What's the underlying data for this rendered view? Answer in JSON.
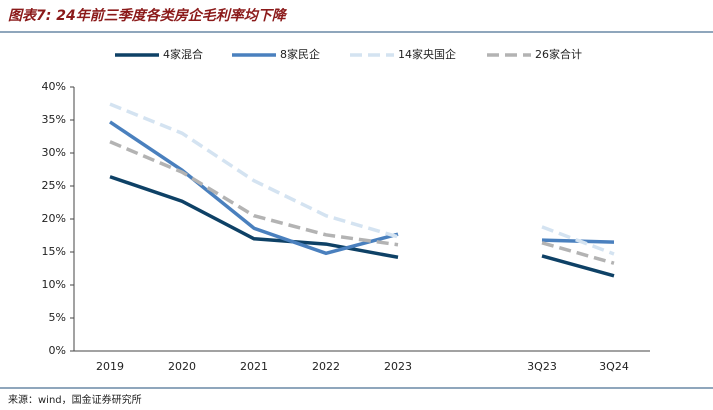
{
  "chart_data": {
    "type": "line",
    "title": "图表7: 24年前三季度各类房企毛利率均下降",
    "source": "来源：wind，国金证券研究所",
    "categories": [
      "2019",
      "2020",
      "2021",
      "2022",
      "2023",
      null,
      "3Q23",
      "3Q24"
    ],
    "series": [
      {
        "name": "4家混合",
        "color": "#0e4166",
        "dashed": false,
        "values": [
          26.4,
          22.7,
          17.0,
          16.2,
          14.2,
          null,
          14.4,
          11.4
        ]
      },
      {
        "name": "8家民企",
        "color": "#4a80be",
        "dashed": false,
        "values": [
          34.7,
          27.4,
          18.6,
          14.8,
          17.7,
          null,
          16.8,
          16.5
        ]
      },
      {
        "name": "14家央国企",
        "color": "#d4e3f1",
        "dashed": true,
        "values": [
          37.4,
          33.0,
          25.8,
          20.5,
          17.3,
          null,
          18.8,
          14.7
        ]
      },
      {
        "name": "26家合计",
        "color": "#b3b3b3",
        "dashed": true,
        "values": [
          31.7,
          27.1,
          20.5,
          17.6,
          16.1,
          null,
          16.4,
          13.3
        ]
      }
    ],
    "ylim": [
      0,
      40
    ],
    "yticks": [
      {
        "value": 0,
        "label": "0%"
      },
      {
        "value": 5,
        "label": "5%"
      },
      {
        "value": 10,
        "label": "10%"
      },
      {
        "value": 15,
        "label": "15%"
      },
      {
        "value": 20,
        "label": "20%"
      },
      {
        "value": 25,
        "label": "25%"
      },
      {
        "value": 30,
        "label": "30%"
      },
      {
        "value": 35,
        "label": "35%"
      },
      {
        "value": 40,
        "label": "40%"
      }
    ],
    "grid": false
  }
}
